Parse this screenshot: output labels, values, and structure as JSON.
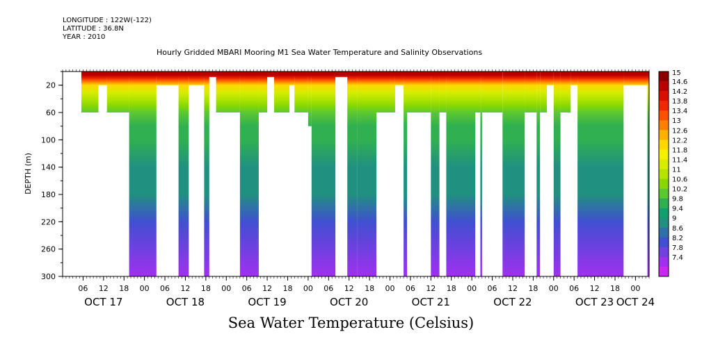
{
  "header": {
    "longitude": "LONGITUDE : 122W(-122)",
    "latitude": "LATITUDE : 36.8N",
    "year": "YEAR : 2010",
    "title": "Hourly Gridded MBARI Mooring M1 Sea Water Temperature and Salinity Observations"
  },
  "chart_data": {
    "type": "heatmap",
    "title": "Hourly Gridded MBARI Mooring M1 Sea Water Temperature and Salinity Observations",
    "ylabel": "DEPTH (m)",
    "colorbar_label": "Sea Water Temperature (Celsius)",
    "ylim": [
      300,
      0
    ],
    "y_ticks": [
      20,
      60,
      100,
      140,
      180,
      220,
      260,
      300
    ],
    "x_start": "OCT 16 2010 20:00",
    "x_end": "OCT 24 2010 12:00",
    "x_hour_ticks": [
      {
        "hour": 6,
        "label": "06"
      },
      {
        "hour": 12,
        "label": "12"
      },
      {
        "hour": 18,
        "label": "18"
      },
      {
        "hour": 24,
        "label": "00"
      },
      {
        "hour": 30,
        "label": "06"
      },
      {
        "hour": 36,
        "label": "12"
      },
      {
        "hour": 42,
        "label": "18"
      },
      {
        "hour": 48,
        "label": "00"
      },
      {
        "hour": 54,
        "label": "06"
      },
      {
        "hour": 60,
        "label": "12"
      },
      {
        "hour": 66,
        "label": "18"
      },
      {
        "hour": 72,
        "label": "00"
      },
      {
        "hour": 78,
        "label": "06"
      },
      {
        "hour": 84,
        "label": "12"
      },
      {
        "hour": 90,
        "label": "18"
      },
      {
        "hour": 96,
        "label": "00"
      },
      {
        "hour": 102,
        "label": "06"
      },
      {
        "hour": 108,
        "label": "12"
      },
      {
        "hour": 114,
        "label": "18"
      },
      {
        "hour": 120,
        "label": "00"
      },
      {
        "hour": 126,
        "label": "06"
      },
      {
        "hour": 132,
        "label": "12"
      },
      {
        "hour": 138,
        "label": "18"
      },
      {
        "hour": 144,
        "label": "00"
      },
      {
        "hour": 150,
        "label": "06"
      },
      {
        "hour": 156,
        "label": "12"
      },
      {
        "hour": 162,
        "label": "18"
      },
      {
        "hour": 168,
        "label": "00"
      }
    ],
    "day_labels": [
      {
        "hour": 12,
        "label": "OCT 17"
      },
      {
        "hour": 36,
        "label": "OCT 18"
      },
      {
        "hour": 60,
        "label": "OCT 19"
      },
      {
        "hour": 84,
        "label": "OCT 20"
      },
      {
        "hour": 108,
        "label": "OCT 21"
      },
      {
        "hour": 132,
        "label": "OCT 22"
      },
      {
        "hour": 156,
        "label": "OCT 23"
      },
      {
        "hour": 168,
        "label": "OCT 24"
      }
    ],
    "colorbar": {
      "levels": [
        "15",
        "14.6",
        "14.2",
        "13.8",
        "13.4",
        "13",
        "12.6",
        "12.2",
        "11.8",
        "11.4",
        "11",
        "10.6",
        "10.2",
        "9.8",
        "9.4",
        "9",
        "8.6",
        "8.2",
        "7.8",
        "7.4"
      ],
      "colors": [
        "#8c0000",
        "#b80000",
        "#d81000",
        "#f02800",
        "#ff5000",
        "#ff8000",
        "#ffb000",
        "#ffd800",
        "#f4f000",
        "#d8ec00",
        "#b4e400",
        "#88d800",
        "#5cc830",
        "#30b050",
        "#10a070",
        "#209080",
        "#3070a8",
        "#4050d0",
        "#7040e0",
        "#a030f0",
        "#c828f0"
      ]
    },
    "depth_profile": [
      {
        "depth": 5,
        "temp": 14.8
      },
      {
        "depth": 10,
        "temp": 14.0
      },
      {
        "depth": 15,
        "temp": 13.2
      },
      {
        "depth": 20,
        "temp": 12.5
      },
      {
        "depth": 30,
        "temp": 11.7
      },
      {
        "depth": 40,
        "temp": 11.1
      },
      {
        "depth": 50,
        "temp": 10.6
      },
      {
        "depth": 60,
        "temp": 10.3
      },
      {
        "depth": 80,
        "temp": 10.0
      },
      {
        "depth": 100,
        "temp": 9.8
      },
      {
        "depth": 140,
        "temp": 9.35
      },
      {
        "depth": 180,
        "temp": 9.0
      },
      {
        "depth": 220,
        "temp": 8.5
      },
      {
        "depth": 260,
        "temp": 8.0
      },
      {
        "depth": 300,
        "temp": 7.5
      }
    ],
    "data_columns": [
      {
        "t0": 5.5,
        "t1": 123.0,
        "zmax": 8
      },
      {
        "t0": 5.5,
        "t1": 10.5,
        "zmax": 60
      },
      {
        "t0": 10.5,
        "t1": 13.0,
        "zmax": 20
      },
      {
        "t0": 13.0,
        "t1": 19.5,
        "zmax": 60
      },
      {
        "t0": 19.5,
        "t1": 27.5,
        "zmax": 300
      },
      {
        "t0": 27.5,
        "t1": 34.0,
        "zmax": 20
      },
      {
        "t0": 34.0,
        "t1": 37.0,
        "zmax": 300
      },
      {
        "t0": 37.0,
        "t1": 41.5,
        "zmax": 20
      },
      {
        "t0": 41.5,
        "t1": 43.0,
        "zmax": 300
      },
      {
        "t0": 45.0,
        "t1": 52.0,
        "zmax": 60
      },
      {
        "t0": 52.0,
        "t1": 57.5,
        "zmax": 300
      },
      {
        "t0": 57.5,
        "t1": 60.0,
        "zmax": 60
      },
      {
        "t0": 62.0,
        "t1": 66.5,
        "zmax": 60
      },
      {
        "t0": 66.5,
        "t1": 68.0,
        "zmax": 20
      },
      {
        "t0": 68.0,
        "t1": 72.0,
        "zmax": 60
      },
      {
        "t0": 72.0,
        "t1": 73.0,
        "zmax": 80
      },
      {
        "t0": 73.0,
        "t1": 80.0,
        "zmax": 300
      },
      {
        "t0": 83.5,
        "t1": 86.5,
        "zmax": 300
      },
      {
        "t0": 86.5,
        "t1": 92.0,
        "zmax": 300
      },
      {
        "t0": 92.0,
        "t1": 97.5,
        "zmax": 60
      },
      {
        "t0": 97.5,
        "t1": 100.0,
        "zmax": 20
      },
      {
        "t0": 100.0,
        "t1": 101.0,
        "zmax": 300
      },
      {
        "t0": 101.0,
        "t1": 108.0,
        "zmax": 60
      },
      {
        "t0": 108.0,
        "t1": 110.5,
        "zmax": 300
      },
      {
        "t0": 110.5,
        "t1": 112.5,
        "zmax": 60
      },
      {
        "t0": 112.5,
        "t1": 121.0,
        "zmax": 300
      },
      {
        "t0": 121.0,
        "t1": 122.5,
        "zmax": 60
      },
      {
        "t0": 122.5,
        "t1": 123.0,
        "zmax": 300
      },
      {
        "t0": 123.0,
        "t1": 129.0,
        "zmax": 60
      },
      {
        "t0": 129.0,
        "t1": 135.5,
        "zmax": 300
      },
      {
        "t0": 135.5,
        "t1": 139.0,
        "zmax": 60
      },
      {
        "t0": 139.0,
        "t1": 140.0,
        "zmax": 300
      },
      {
        "t0": 140.0,
        "t1": 142.0,
        "zmax": 60
      },
      {
        "t0": 142.0,
        "t1": 144.0,
        "zmax": 20
      },
      {
        "t0": 144.0,
        "t1": 146.0,
        "zmax": 300
      },
      {
        "t0": 146.0,
        "t1": 149.0,
        "zmax": 60
      },
      {
        "t0": 149.0,
        "t1": 164.5,
        "zmax": 8
      },
      {
        "t0": 149.0,
        "t1": 151.0,
        "zmax": 20
      },
      {
        "t0": 151.0,
        "t1": 164.5,
        "zmax": 300
      },
      {
        "t0": 164.5,
        "t1": 171.5,
        "zmax": 20
      },
      {
        "t0": 171.5,
        "t1": 172.0,
        "zmax": 300
      }
    ]
  }
}
